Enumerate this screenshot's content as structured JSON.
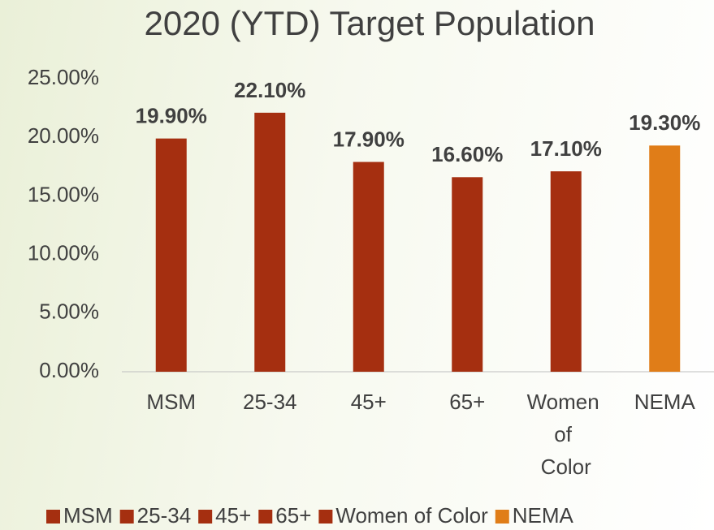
{
  "chart_data": {
    "type": "bar",
    "title": "2020 (YTD) Target Population",
    "categories": [
      "MSM",
      "25-34",
      "45+",
      "65+",
      "Women of Color",
      "NEMA"
    ],
    "values": [
      19.9,
      22.1,
      17.9,
      16.6,
      17.1,
      19.3
    ],
    "value_labels": [
      "19.90%",
      "22.10%",
      "17.90%",
      "16.60%",
      "17.10%",
      "19.30%"
    ],
    "colors": [
      "#a52f10",
      "#a52f10",
      "#a52f10",
      "#a52f10",
      "#a52f10",
      "#e07d18"
    ],
    "ylim": [
      0,
      25
    ],
    "yticks": [
      {
        "value": 0,
        "label": "0.00%"
      },
      {
        "value": 5,
        "label": "5.00%"
      },
      {
        "value": 10,
        "label": "10.00%"
      },
      {
        "value": 15,
        "label": "15.00%"
      },
      {
        "value": 20,
        "label": "20.00%"
      },
      {
        "value": 25,
        "label": "25.00%"
      }
    ],
    "grid": false,
    "legend": "bottom"
  }
}
